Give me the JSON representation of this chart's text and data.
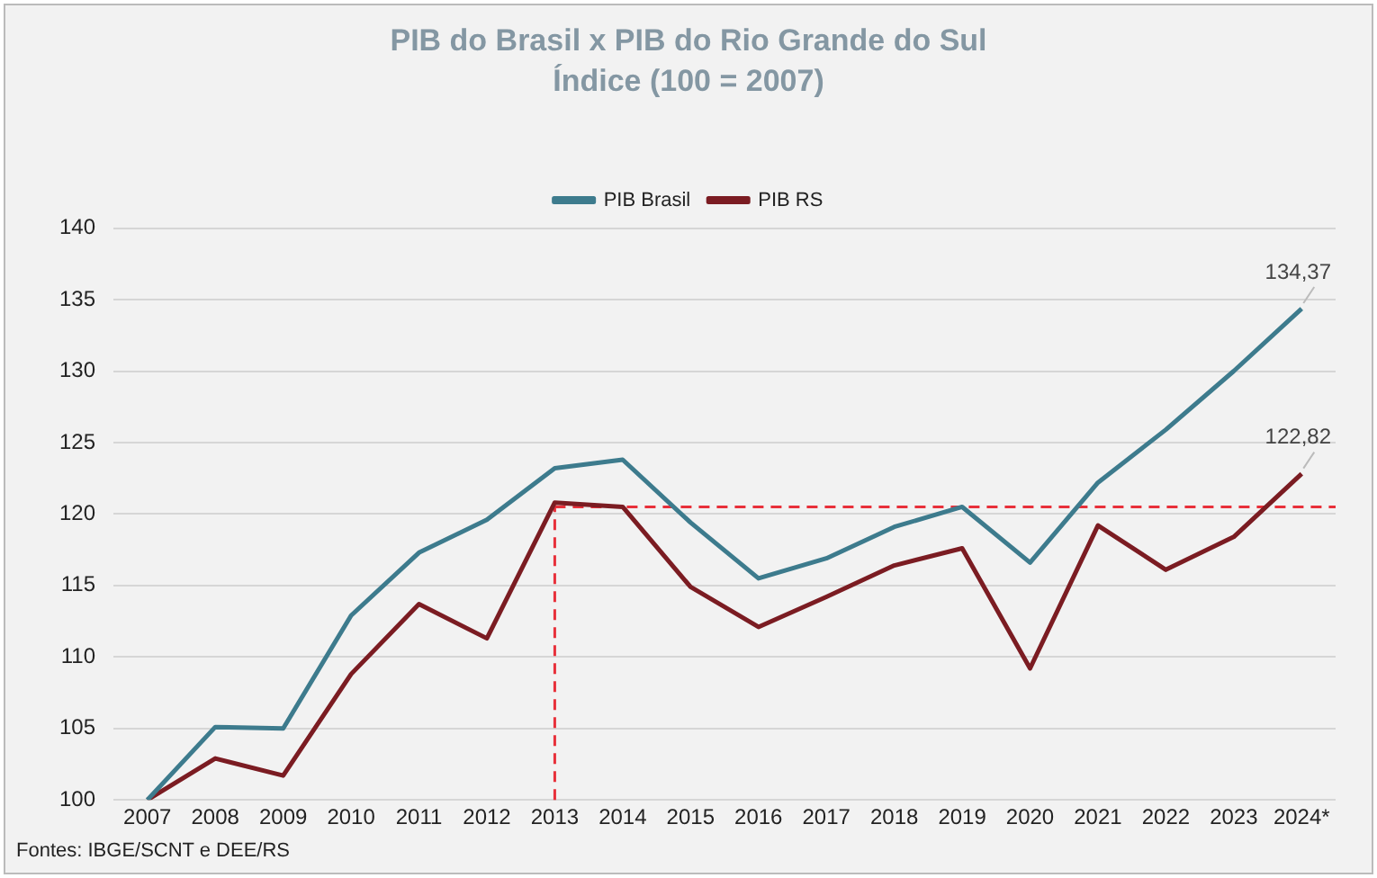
{
  "chart_data": {
    "type": "line",
    "title": "PIB do Brasil x PIB do Rio Grande do Sul",
    "subtitle": "Índice (100 = 2007)",
    "categories": [
      "2007",
      "2008",
      "2009",
      "2010",
      "2011",
      "2012",
      "2013",
      "2014",
      "2015",
      "2016",
      "2017",
      "2018",
      "2019",
      "2020",
      "2021",
      "2022",
      "2023",
      "2024*"
    ],
    "series": [
      {
        "name": "PIB Brasil",
        "color": "#3d7b8d",
        "values": [
          100,
          105.1,
          105,
          112.9,
          117.3,
          119.6,
          123.2,
          123.8,
          119.4,
          115.5,
          116.9,
          119.1,
          120.5,
          116.6,
          122.2,
          125.9,
          130,
          134.37
        ],
        "value_labels": [
          null,
          null,
          null,
          null,
          null,
          null,
          null,
          null,
          null,
          null,
          null,
          null,
          null,
          null,
          null,
          null,
          null,
          "134,37"
        ]
      },
      {
        "name": "PIB RS",
        "color": "#7b1c22",
        "values": [
          100,
          102.9,
          101.7,
          108.8,
          113.7,
          111.3,
          120.8,
          120.5,
          114.9,
          112.1,
          114.2,
          116.4,
          117.6,
          109.2,
          119.2,
          116.1,
          118.4,
          122.82
        ],
        "value_labels": [
          null,
          null,
          null,
          null,
          null,
          null,
          null,
          null,
          null,
          null,
          null,
          null,
          null,
          null,
          null,
          null,
          null,
          "122,82"
        ]
      }
    ],
    "ylim": [
      100,
      140
    ],
    "yticks": [
      100,
      105,
      110,
      115,
      120,
      125,
      130,
      135,
      140
    ],
    "grid": "y",
    "legend": "top",
    "marker": "none",
    "line_style": "solid",
    "ref_lines": [
      {
        "axis": "y",
        "value": 120.5,
        "color": "#e8303a",
        "line_style": "dashed"
      },
      {
        "axis": "x",
        "value": "2013",
        "color": "#e8303a",
        "line_style": "dashed"
      }
    ],
    "annotations": [
      "Fontes: IBGE/SCNT e DEE/RS"
    ]
  }
}
